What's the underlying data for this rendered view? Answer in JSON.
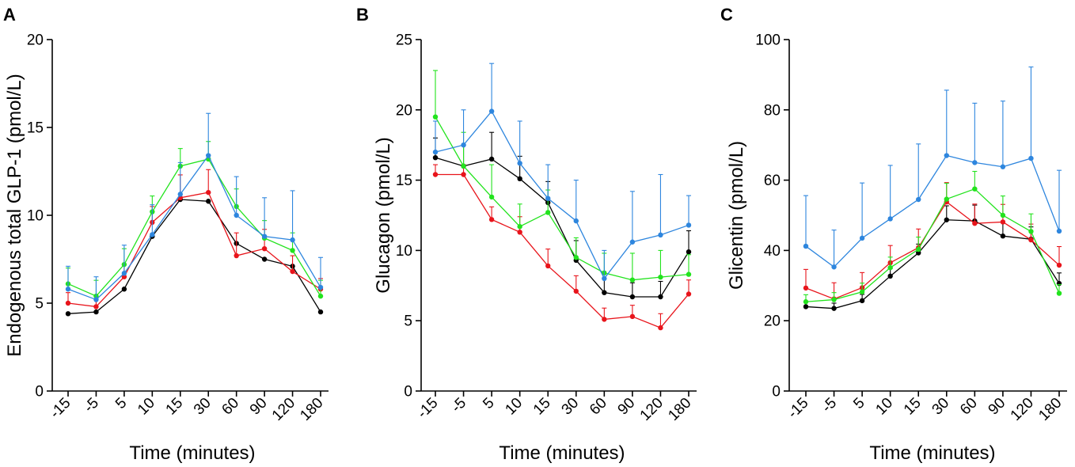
{
  "figure": {
    "panels": [
      "A",
      "B",
      "C"
    ]
  },
  "chart_data": [
    {
      "type": "line",
      "panel": "A",
      "title": "",
      "xlabel": "Time (minutes)",
      "ylabel": "Endogenous total GLP-1 (pmol/L)",
      "categories": [
        "-15",
        "-5",
        "5",
        "10",
        "15",
        "30",
        "60",
        "90",
        "120",
        "180"
      ],
      "ylim": [
        0,
        20
      ],
      "yticks": [
        "0",
        "5",
        "10",
        "15",
        "20"
      ],
      "grid": false,
      "error_bars": true,
      "series": [
        {
          "name": "black",
          "color": "#000000",
          "values": [
            4.4,
            4.5,
            5.8,
            8.8,
            10.9,
            10.8,
            8.4,
            7.5,
            7.1,
            4.5
          ],
          "errors": [
            0.0,
            0.0,
            0.0,
            0.0,
            0.0,
            0.0,
            0.0,
            0.0,
            0.0,
            0.0
          ]
        },
        {
          "name": "red",
          "color": "#e8141b",
          "values": [
            5.0,
            4.8,
            6.5,
            9.6,
            11.0,
            11.3,
            7.7,
            8.1,
            6.8,
            5.8
          ],
          "errors": [
            0.6,
            0.6,
            0.7,
            0.9,
            1.3,
            1.3,
            1.3,
            1.1,
            0.9,
            0.6
          ]
        },
        {
          "name": "green",
          "color": "#22e31d",
          "values": [
            6.1,
            5.4,
            7.2,
            10.2,
            12.8,
            13.2,
            10.5,
            8.7,
            8.0,
            5.4
          ],
          "errors": [
            0.9,
            0.9,
            0.9,
            0.9,
            1.0,
            1.0,
            1.0,
            1.0,
            1.0,
            0.9
          ]
        },
        {
          "name": "blue",
          "color": "#2e86de",
          "values": [
            5.8,
            5.2,
            6.7,
            8.9,
            11.2,
            13.4,
            10.0,
            8.8,
            8.6,
            5.9
          ],
          "errors": [
            1.3,
            1.3,
            1.6,
            1.7,
            1.8,
            2.4,
            2.2,
            2.2,
            2.8,
            1.7
          ]
        }
      ]
    },
    {
      "type": "line",
      "panel": "B",
      "title": "",
      "xlabel": "Time (minutes)",
      "ylabel": "Glucagon (pmol/L)",
      "categories": [
        "-15",
        "-5",
        "5",
        "10",
        "15",
        "30",
        "60",
        "90",
        "120",
        "180"
      ],
      "ylim": [
        0,
        25
      ],
      "yticks": [
        "0",
        "5",
        "10",
        "15",
        "20",
        "25"
      ],
      "grid": false,
      "error_bars": true,
      "series": [
        {
          "name": "black",
          "color": "#000000",
          "values": [
            16.6,
            16.0,
            16.5,
            15.1,
            13.4,
            9.3,
            7.0,
            6.7,
            6.7,
            9.9
          ],
          "errors": [
            1.4,
            1.5,
            1.9,
            1.6,
            1.5,
            1.4,
            1.0,
            1.0,
            1.1,
            1.5
          ]
        },
        {
          "name": "red",
          "color": "#e8141b",
          "values": [
            15.4,
            15.4,
            12.2,
            11.3,
            8.9,
            7.1,
            5.1,
            5.3,
            4.5,
            6.9
          ],
          "errors": [
            0.7,
            0.7,
            0.9,
            1.1,
            1.2,
            1.1,
            0.8,
            0.8,
            1.0,
            1.0
          ]
        },
        {
          "name": "green",
          "color": "#22e31d",
          "values": [
            19.5,
            16.0,
            13.8,
            11.7,
            12.7,
            9.5,
            8.4,
            7.9,
            8.1,
            8.3
          ],
          "errors": [
            3.3,
            2.4,
            2.3,
            1.6,
            1.6,
            1.4,
            1.4,
            1.9,
            1.9,
            1.4
          ]
        },
        {
          "name": "blue",
          "color": "#2e86de",
          "values": [
            17.0,
            17.5,
            19.9,
            16.2,
            13.7,
            12.1,
            8.0,
            10.6,
            11.1,
            11.8
          ],
          "errors": [
            2.2,
            2.5,
            3.4,
            3.0,
            2.4,
            2.9,
            2.0,
            3.6,
            4.3,
            2.1
          ]
        }
      ]
    },
    {
      "type": "line",
      "panel": "C",
      "title": "",
      "xlabel": "Time (minutes)",
      "ylabel": "Glicentin (pmol/L)",
      "categories": [
        "-15",
        "-5",
        "5",
        "10",
        "15",
        "30",
        "60",
        "90",
        "120",
        "180"
      ],
      "ylim": [
        0,
        100
      ],
      "yticks": [
        "0",
        "20",
        "40",
        "60",
        "80",
        "100"
      ],
      "grid": false,
      "error_bars": true,
      "series": [
        {
          "name": "black",
          "color": "#000000",
          "values": [
            24.0,
            23.5,
            25.7,
            32.7,
            39.3,
            48.7,
            48.4,
            44.1,
            43.2,
            30.6
          ],
          "errors": [
            1.5,
            1.5,
            1.8,
            2.2,
            2.5,
            4.0,
            4.5,
            4.0,
            3.5,
            3.0
          ]
        },
        {
          "name": "red",
          "color": "#e8141b",
          "values": [
            29.3,
            26.2,
            29.4,
            36.5,
            40.8,
            53.8,
            47.7,
            48.1,
            43.0,
            35.8
          ],
          "errors": [
            5.3,
            4.6,
            4.3,
            4.9,
            5.3,
            5.5,
            5.5,
            5.0,
            4.5,
            5.3
          ]
        },
        {
          "name": "green",
          "color": "#22e31d",
          "values": [
            25.4,
            26.0,
            28.2,
            35.1,
            40.3,
            54.6,
            57.5,
            50.0,
            45.4,
            27.8
          ],
          "errors": [
            2.0,
            2.0,
            2.5,
            3.0,
            3.5,
            4.5,
            5.0,
            5.5,
            5.0,
            2.5
          ]
        },
        {
          "name": "blue",
          "color": "#2e86de",
          "values": [
            41.2,
            35.3,
            43.5,
            49.0,
            54.5,
            67.0,
            65.0,
            63.8,
            66.2,
            45.5
          ],
          "errors": [
            14.4,
            10.5,
            15.7,
            15.2,
            15.8,
            18.6,
            16.9,
            18.7,
            26.0,
            17.3
          ]
        }
      ]
    }
  ]
}
